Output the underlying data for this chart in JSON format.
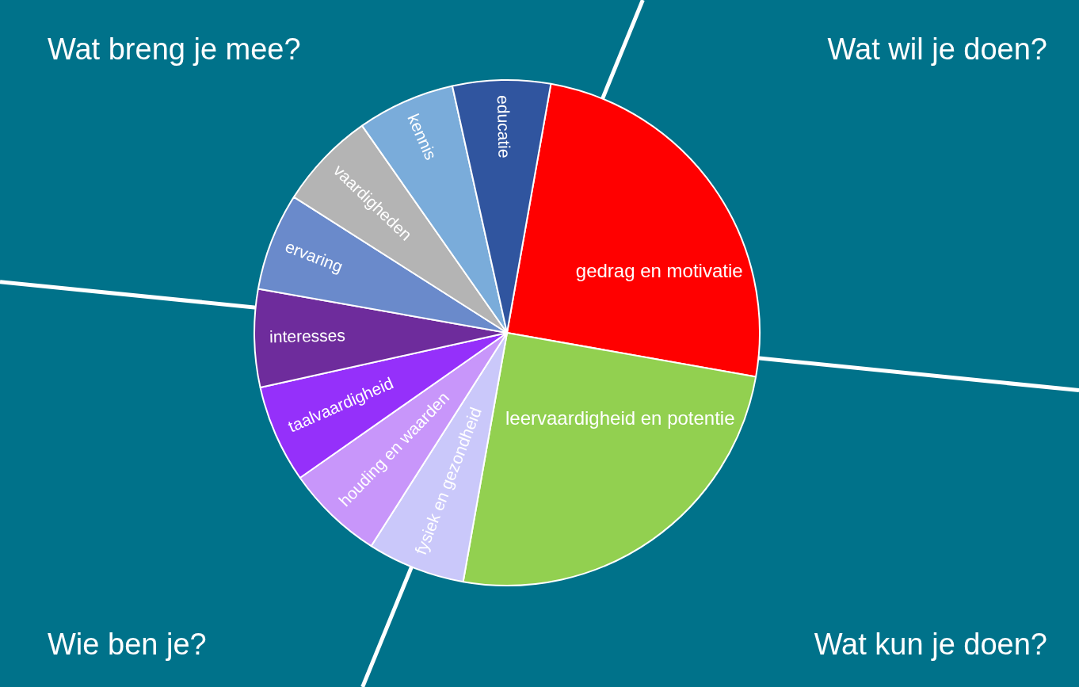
{
  "chart_data": {
    "type": "pie",
    "categories": [
      "gedrag en motivatie",
      "leervaardigheid en potentie",
      "fysiek en gezondheid",
      "houding en waarden",
      "taalvaardigheid",
      "interesses",
      "ervaring",
      "vaardigheden",
      "kennis",
      "educatie"
    ],
    "values": [
      25,
      25,
      6.25,
      6.25,
      6.25,
      6.25,
      6.25,
      6.25,
      6.25,
      6.25
    ],
    "colors": [
      "#ff0000",
      "#92d050",
      "#cac8fa",
      "#c896fa",
      "#9530fa",
      "#6e2c9c",
      "#6a8acb",
      "#b4b4b4",
      "#7aacda",
      "#30559f"
    ],
    "legend": false,
    "annotations": [
      "Wat breng je mee?",
      "Wat wil je doen?",
      "Wie ben je?",
      "Wat kun je doen?"
    ]
  }
}
